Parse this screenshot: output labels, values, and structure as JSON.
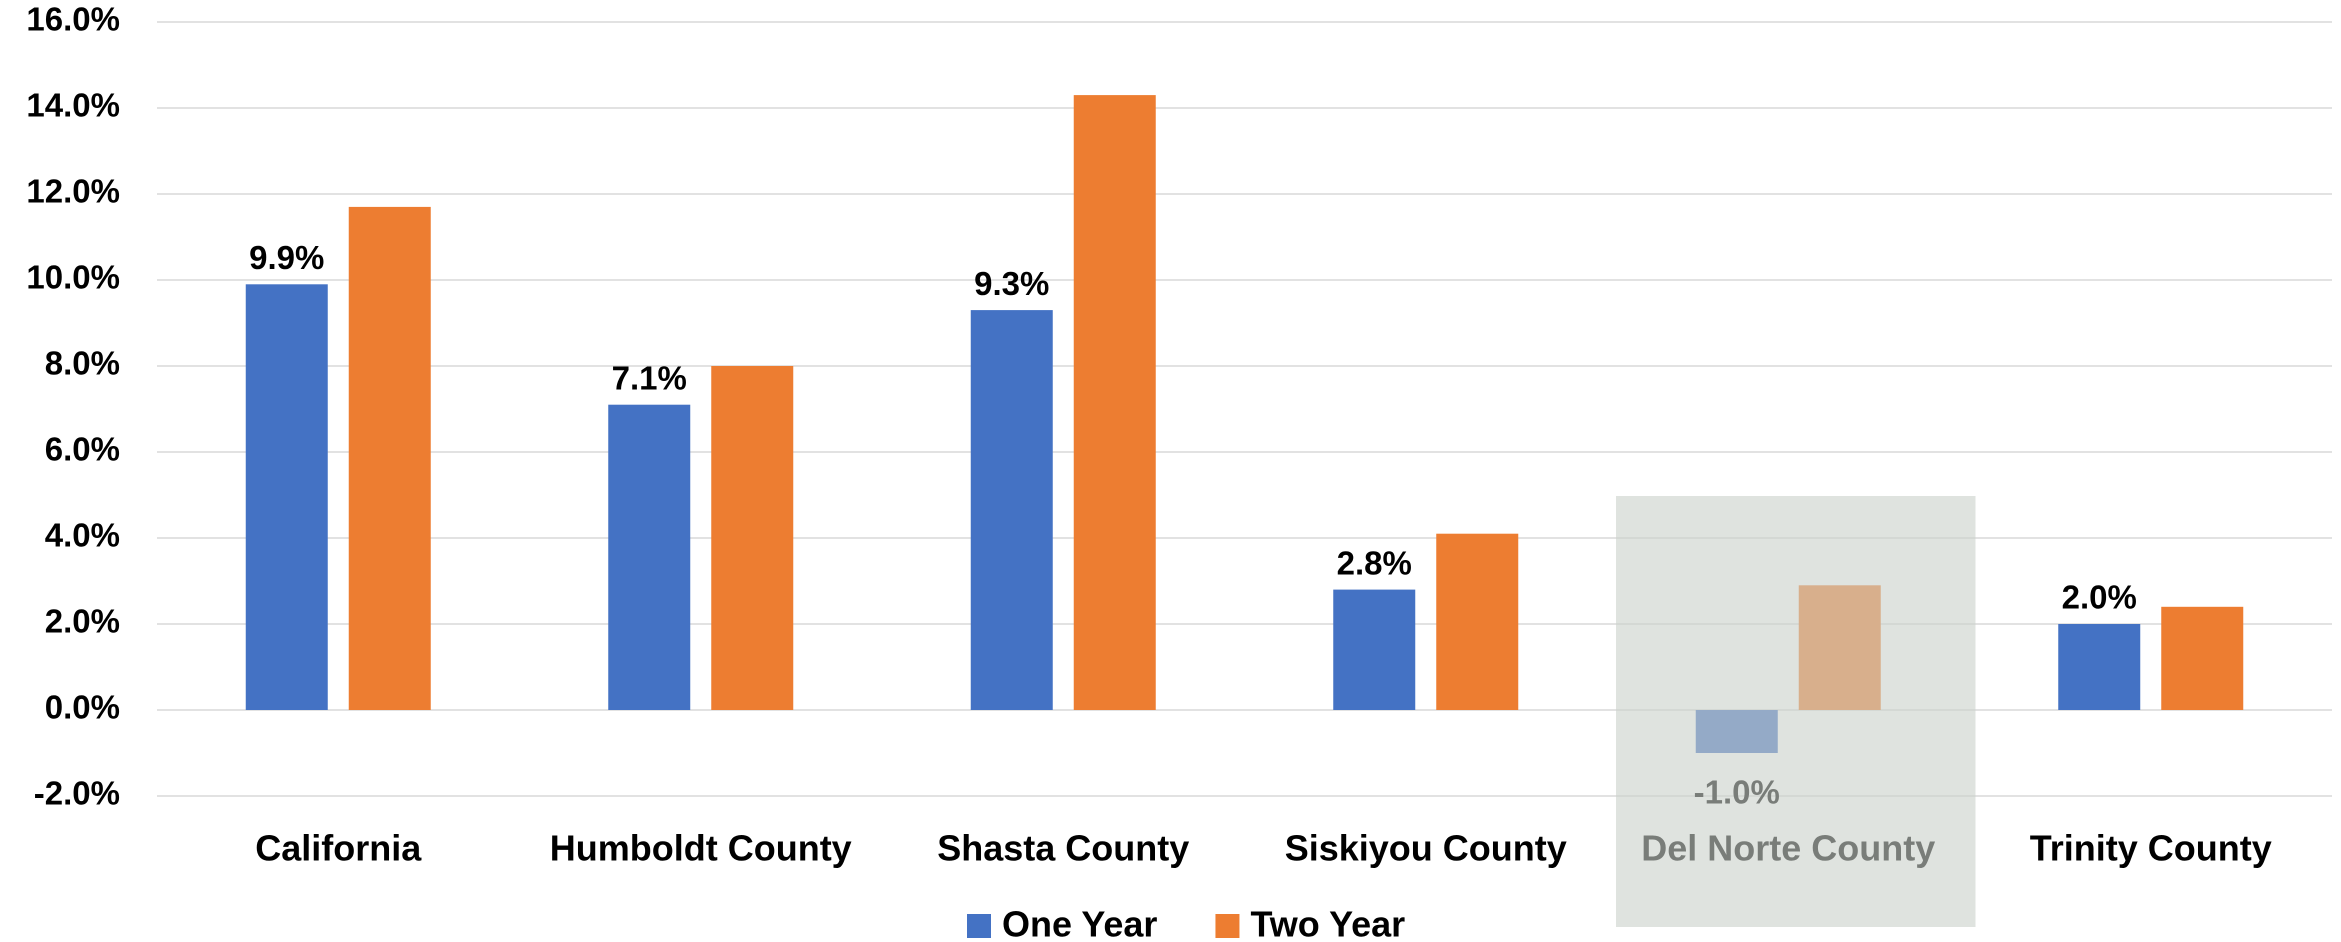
{
  "chart_data": {
    "type": "bar",
    "categories": [
      "California",
      "Humboldt County",
      "Shasta County",
      "Siskiyou County",
      "Del Norte County",
      "Trinity County"
    ],
    "series": [
      {
        "name": "One Year",
        "color": "#4472c4",
        "values": [
          9.9,
          7.1,
          9.3,
          2.8,
          -1.0,
          2.0
        ],
        "value_labels": [
          "9.9%",
          "7.1%",
          "9.3%",
          "2.8%",
          "-1.0%",
          "2.0%"
        ]
      },
      {
        "name": "Two Year",
        "color": "#ed7d31",
        "values": [
          11.7,
          8.0,
          14.3,
          4.1,
          2.9,
          2.4
        ]
      }
    ],
    "ylim": [
      -2,
      16
    ],
    "yticks": [
      {
        "value": -2,
        "label": "-2.0%"
      },
      {
        "value": 0,
        "label": "0.0%"
      },
      {
        "value": 2,
        "label": "2.0%"
      },
      {
        "value": 4,
        "label": "4.0%"
      },
      {
        "value": 6,
        "label": "6.0%"
      },
      {
        "value": 8,
        "label": "8.0%"
      },
      {
        "value": 10,
        "label": "10.0%"
      },
      {
        "value": 12,
        "label": "12.0%"
      },
      {
        "value": 14,
        "label": "14.0%"
      },
      {
        "value": 16,
        "label": "16.0%"
      }
    ],
    "grid": true,
    "legend": "bottom",
    "highlighted_category": 4
  }
}
